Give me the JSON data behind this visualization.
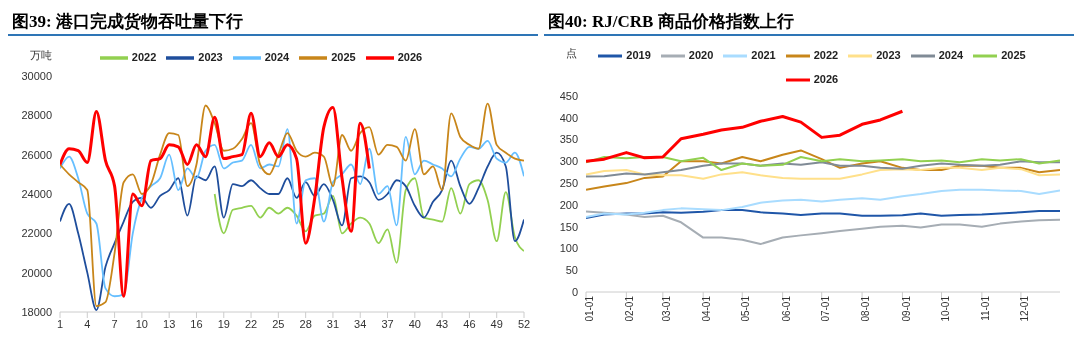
{
  "chart_data": [
    {
      "type": "line",
      "title": "图39: 港口完成货物吞吐量下行",
      "ylabel": "万吨",
      "legend": "top",
      "x": [
        1,
        2,
        3,
        4,
        5,
        6,
        7,
        8,
        9,
        10,
        11,
        12,
        13,
        14,
        15,
        16,
        17,
        18,
        19,
        20,
        21,
        22,
        23,
        24,
        25,
        26,
        27,
        28,
        29,
        30,
        31,
        32,
        33,
        34,
        35,
        36,
        37,
        38,
        39,
        40,
        41,
        42,
        43,
        44,
        45,
        46,
        47,
        48,
        49,
        50,
        51,
        52
      ],
      "xlim": [
        1,
        52
      ],
      "xticks": [
        1,
        4,
        7,
        10,
        13,
        16,
        19,
        22,
        25,
        28,
        31,
        34,
        37,
        40,
        43,
        46,
        49,
        52
      ],
      "ylim": [
        18000,
        30000
      ],
      "yticks": [
        18000,
        20000,
        22000,
        24000,
        26000,
        28000,
        30000
      ],
      "series": [
        {
          "name": "2022",
          "color": "#92d050",
          "values": [
            null,
            null,
            null,
            null,
            null,
            null,
            null,
            null,
            null,
            null,
            null,
            null,
            null,
            null,
            null,
            null,
            null,
            24000,
            22000,
            23200,
            23300,
            23400,
            22800,
            23300,
            23000,
            23300,
            22900,
            22100,
            22900,
            23000,
            23900,
            22000,
            22500,
            22800,
            22500,
            21500,
            22200,
            20500,
            24200,
            24800,
            22800,
            22700,
            22600,
            24300,
            23000,
            24500,
            24700,
            23700,
            21600,
            24100,
            21800,
            21100
          ]
        },
        {
          "name": "2023",
          "color": "#1f4e9c",
          "values": [
            22600,
            23500,
            22000,
            20000,
            18100,
            20300,
            21500,
            22600,
            23600,
            23800,
            23300,
            23900,
            24200,
            24800,
            22900,
            24900,
            24700,
            25400,
            22800,
            24500,
            24400,
            24700,
            24300,
            24000,
            24000,
            24800,
            23800,
            24600,
            23900,
            24500,
            23700,
            22400,
            24800,
            24900,
            24600,
            23700,
            24000,
            24700,
            24400,
            23400,
            22800,
            23600,
            24200,
            25700,
            24400,
            23500,
            24300,
            25400,
            26100,
            25400,
            21600,
            22700
          ]
        },
        {
          "name": "2024",
          "color": "#66bfff",
          "values": [
            25300,
            25900,
            24800,
            23000,
            22500,
            19200,
            18800,
            18900,
            22000,
            23800,
            24400,
            24800,
            26000,
            24200,
            25300,
            24800,
            26200,
            26500,
            25300,
            25600,
            25700,
            26500,
            25300,
            25500,
            25400,
            27300,
            22500,
            24700,
            24800,
            22600,
            24600,
            25000,
            25500,
            24500,
            26300,
            24000,
            24400,
            22400,
            26900,
            25000,
            25700,
            25500,
            25300,
            24900,
            25800,
            26400,
            26300,
            26700,
            25800,
            25600,
            26100,
            24900
          ]
        },
        {
          "name": "2025",
          "color": "#c8861a",
          "values": [
            25500,
            25000,
            24600,
            24200,
            18300,
            18500,
            21000,
            24600,
            25000,
            24000,
            24500,
            26000,
            27100,
            27000,
            24400,
            25500,
            28500,
            27600,
            26200,
            26300,
            26800,
            27600,
            25500,
            25000,
            26000,
            27100,
            26200,
            25900,
            26100,
            25900,
            24400,
            27000,
            26200,
            27100,
            27400,
            26000,
            26500,
            26400,
            25700,
            27300,
            25000,
            25400,
            24200,
            28100,
            26900,
            26500,
            26300,
            28600,
            26500,
            26100,
            25800,
            25700
          ]
        },
        {
          "name": "2026",
          "color": "#ff0000",
          "values": [
            25500,
            26300,
            26200,
            25600,
            28200,
            25700,
            24400,
            18800,
            24000,
            23400,
            25700,
            25800,
            26500,
            26400,
            25500,
            26500,
            25900,
            27900,
            25800,
            25900,
            26000,
            28100,
            25900,
            26600,
            25900,
            26500,
            25800,
            21500,
            23800,
            27400,
            28400,
            24800,
            22100,
            27600,
            25300,
            null,
            null,
            null,
            null,
            null,
            null,
            null,
            null,
            null,
            null,
            null,
            null,
            null,
            null,
            null,
            null,
            null
          ]
        }
      ]
    },
    {
      "type": "line",
      "title": "图40: RJ/CRB 商品价格指数上行",
      "ylabel": "点",
      "legend": "top",
      "x": [
        "--01-01",
        "--01-15",
        "--02-01",
        "--02-15",
        "--03-01",
        "--03-15",
        "--04-01",
        "--04-15",
        "--05-01",
        "--05-15",
        "--06-01",
        "--06-15",
        "--07-01",
        "--07-15",
        "--08-01",
        "--08-15",
        "--09-01",
        "--09-15",
        "--10-01",
        "--10-15",
        "--11-01",
        "--11-15",
        "--12-01",
        "--12-15",
        "--12-31"
      ],
      "xlim": [
        "--01-01",
        "--12-31"
      ],
      "xticks": [
        {
          "value": "--01-01",
          "label": "01-01"
        },
        {
          "value": "--02-01",
          "label": "02-01"
        },
        {
          "value": "--03-01",
          "label": "03-01"
        },
        {
          "value": "--04-01",
          "label": "04-01"
        },
        {
          "value": "--05-01",
          "label": "05-01"
        },
        {
          "value": "--06-01",
          "label": "06-01"
        },
        {
          "value": "--07-01",
          "label": "07-01"
        },
        {
          "value": "--08-01",
          "label": "08-01"
        },
        {
          "value": "--09-01",
          "label": "09-01"
        },
        {
          "value": "--10-01",
          "label": "10-01"
        },
        {
          "value": "--11-01",
          "label": "11-01"
        },
        {
          "value": "--12-01",
          "label": "12-01"
        }
      ],
      "ylim": [
        0,
        450
      ],
      "yticks": [
        0,
        50,
        100,
        150,
        200,
        250,
        300,
        350,
        400,
        450
      ],
      "series": [
        {
          "name": "2019",
          "color": "#1f56a8",
          "values": [
            170,
            178,
            180,
            180,
            183,
            182,
            184,
            188,
            188,
            183,
            180,
            177,
            180,
            180,
            175,
            175,
            176,
            180,
            175,
            177,
            178,
            180,
            183,
            186,
            186
          ]
        },
        {
          "name": "2020",
          "color": "#a6adb4",
          "values": [
            185,
            182,
            178,
            172,
            175,
            160,
            125,
            125,
            120,
            110,
            125,
            130,
            135,
            140,
            145,
            150,
            152,
            148,
            155,
            155,
            150,
            157,
            162,
            165,
            166
          ]
        },
        {
          "name": "2021",
          "color": "#a9dcff",
          "values": [
            172,
            180,
            178,
            182,
            188,
            192,
            190,
            188,
            195,
            205,
            210,
            212,
            208,
            212,
            215,
            212,
            220,
            225,
            232,
            235,
            235,
            233,
            232,
            225,
            233
          ]
        },
        {
          "name": "2022",
          "color": "#c8861a",
          "values": [
            235,
            242,
            250,
            262,
            265,
            300,
            300,
            295,
            310,
            300,
            315,
            325,
            305,
            285,
            295,
            300,
            285,
            280,
            280,
            290,
            290,
            285,
            285,
            275,
            280
          ]
        },
        {
          "name": "2023",
          "color": "#ffe08a",
          "values": [
            270,
            278,
            280,
            270,
            268,
            268,
            260,
            270,
            275,
            268,
            262,
            260,
            260,
            260,
            270,
            280,
            282,
            280,
            285,
            285,
            280,
            285,
            282,
            268,
            270
          ]
        },
        {
          "name": "2024",
          "color": "#808b96",
          "values": [
            265,
            266,
            272,
            270,
            275,
            280,
            290,
            295,
            295,
            290,
            295,
            292,
            298,
            290,
            290,
            285,
            283,
            290,
            295,
            292,
            290,
            292,
            300,
            298,
            298
          ]
        },
        {
          "name": "2025",
          "color": "#92d050",
          "values": [
            298,
            310,
            307,
            310,
            310,
            300,
            308,
            280,
            295,
            290,
            292,
            310,
            300,
            305,
            300,
            302,
            305,
            300,
            302,
            298,
            305,
            302,
            305,
            295,
            302
          ]
        },
        {
          "name": "2026",
          "color": "#ff0000",
          "values": [
            300,
            305,
            320,
            308,
            310,
            352,
            362,
            372,
            378,
            392,
            403,
            390,
            355,
            360,
            385,
            395,
            415,
            null,
            null,
            null,
            null,
            null,
            null,
            null,
            null
          ]
        }
      ]
    }
  ]
}
